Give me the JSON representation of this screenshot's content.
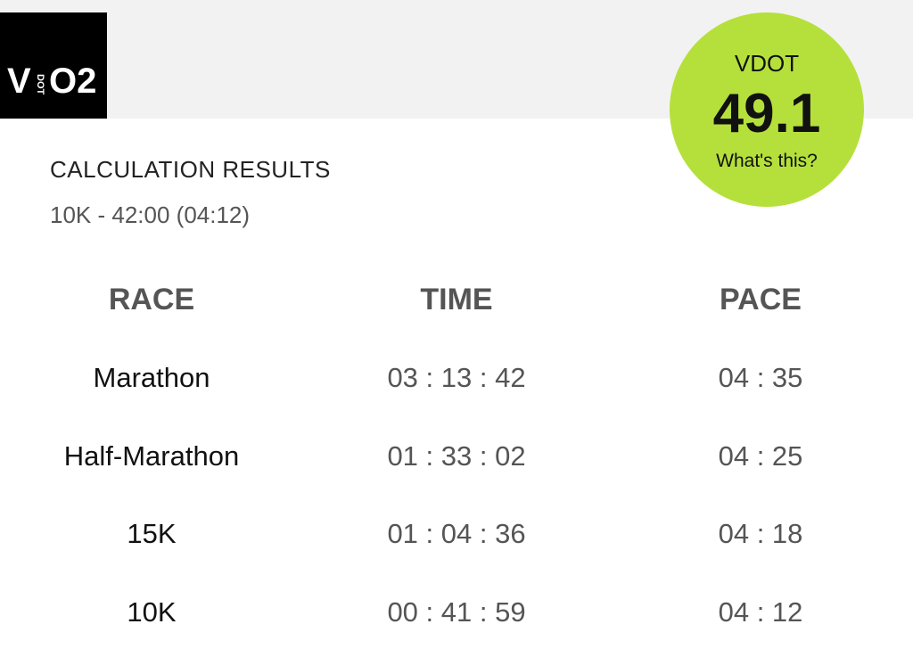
{
  "logo": {
    "left": "V",
    "middle": "DOT",
    "right": "O2"
  },
  "badge": {
    "label": "VDOT",
    "value": "49.1",
    "link": "What's this?"
  },
  "results": {
    "title": "CALCULATION RESULTS",
    "subtitle": "10K - 42:00 (04:12)"
  },
  "table": {
    "headers": [
      "RACE",
      "TIME",
      "PACE"
    ],
    "rows": [
      [
        "Marathon",
        "03 : 13 : 42",
        "04 : 35"
      ],
      [
        "Half-Marathon",
        "01 : 33 : 02",
        "04 : 25"
      ],
      [
        "15K",
        "01 : 04 : 36",
        "04 : 18"
      ],
      [
        "10K",
        "00 : 41 : 59",
        "04 : 12"
      ]
    ]
  }
}
